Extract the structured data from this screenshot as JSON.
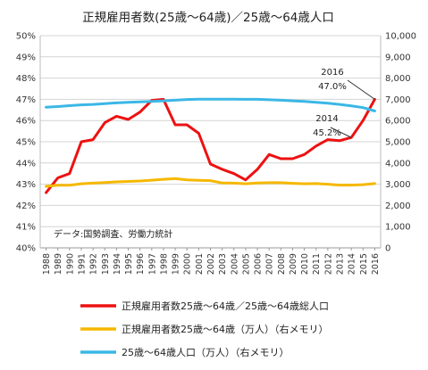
{
  "chart_data": {
    "type": "line",
    "title": "正規雇用者数(25歳～64歳)／25歳～64歳人口",
    "source_note": "データ:国勢調査、労働力統計",
    "x": [
      1988,
      1989,
      1990,
      1991,
      1992,
      1993,
      1994,
      1995,
      1996,
      1997,
      1998,
      1999,
      2000,
      2001,
      2002,
      2003,
      2004,
      2005,
      2006,
      2007,
      2008,
      2009,
      2010,
      2011,
      2012,
      2013,
      2014,
      2015,
      2016
    ],
    "x_tick_labels": [
      "1988",
      "1989",
      "1990",
      "1991",
      "1992",
      "1993",
      "1994",
      "1995",
      "1996",
      "1997",
      "1998",
      "1999",
      "2000",
      "2001",
      "2002",
      "2003",
      "2004",
      "2005",
      "2006",
      "2007",
      "2008",
      "2009",
      "2010",
      "2011",
      "2012",
      "2013",
      "2014",
      "2015",
      "2016"
    ],
    "y_left": {
      "range": [
        40,
        50
      ],
      "ticks": [
        40,
        41,
        42,
        43,
        44,
        45,
        46,
        47,
        48,
        49,
        50
      ],
      "tick_labels": [
        "40%",
        "41%",
        "42%",
        "43%",
        "44%",
        "45%",
        "46%",
        "47%",
        "48%",
        "49%",
        "50%"
      ]
    },
    "y_right": {
      "range": [
        0,
        10000
      ],
      "ticks": [
        0,
        1000,
        2000,
        3000,
        4000,
        5000,
        6000,
        7000,
        8000,
        9000,
        10000
      ],
      "tick_labels": [
        "0",
        "1,000",
        "2,000",
        "3,000",
        "4,000",
        "5,000",
        "6,000",
        "7,000",
        "8,000",
        "9,000",
        "10,000"
      ]
    },
    "grid": true,
    "legend_position": "bottom",
    "series": [
      {
        "name": "正規雇用者数25歳～64歳／25歳～64歳総人口",
        "axis": "left",
        "color": "#ee1111",
        "values": [
          42.6,
          43.3,
          43.5,
          45.0,
          45.1,
          45.9,
          46.2,
          46.05,
          46.4,
          46.95,
          47.0,
          45.8,
          45.8,
          45.4,
          43.95,
          43.7,
          43.5,
          43.2,
          43.7,
          44.4,
          44.2,
          44.2,
          44.4,
          44.8,
          45.1,
          45.05,
          45.2,
          46.0,
          47.0
        ]
      },
      {
        "name": "正規雇用者数25歳～64歳（万人）（右メモリ）",
        "axis": "right",
        "color": "#f5b800",
        "values": [
          2900,
          2950,
          2950,
          3020,
          3050,
          3080,
          3110,
          3130,
          3150,
          3190,
          3230,
          3260,
          3200,
          3180,
          3170,
          3060,
          3050,
          3020,
          3060,
          3070,
          3070,
          3040,
          3020,
          3030,
          3000,
          2960,
          2960,
          2980,
          3030
        ]
      },
      {
        "name": "25歳～64歳人口（万人）（右メモリ）",
        "axis": "right",
        "color": "#3bb7e6",
        "values": [
          6630,
          6660,
          6700,
          6740,
          6760,
          6800,
          6830,
          6860,
          6880,
          6900,
          6930,
          6960,
          6990,
          7010,
          7010,
          7010,
          7010,
          7000,
          7000,
          6980,
          6960,
          6930,
          6900,
          6860,
          6820,
          6760,
          6690,
          6610,
          6450
        ]
      }
    ],
    "annotations": [
      {
        "year": 2016,
        "series_index": 0,
        "label_year": "2016",
        "label_value": "47.0%"
      },
      {
        "year": 2014,
        "series_index": 0,
        "label_year": "2014",
        "label_value": "45.2%"
      }
    ]
  }
}
